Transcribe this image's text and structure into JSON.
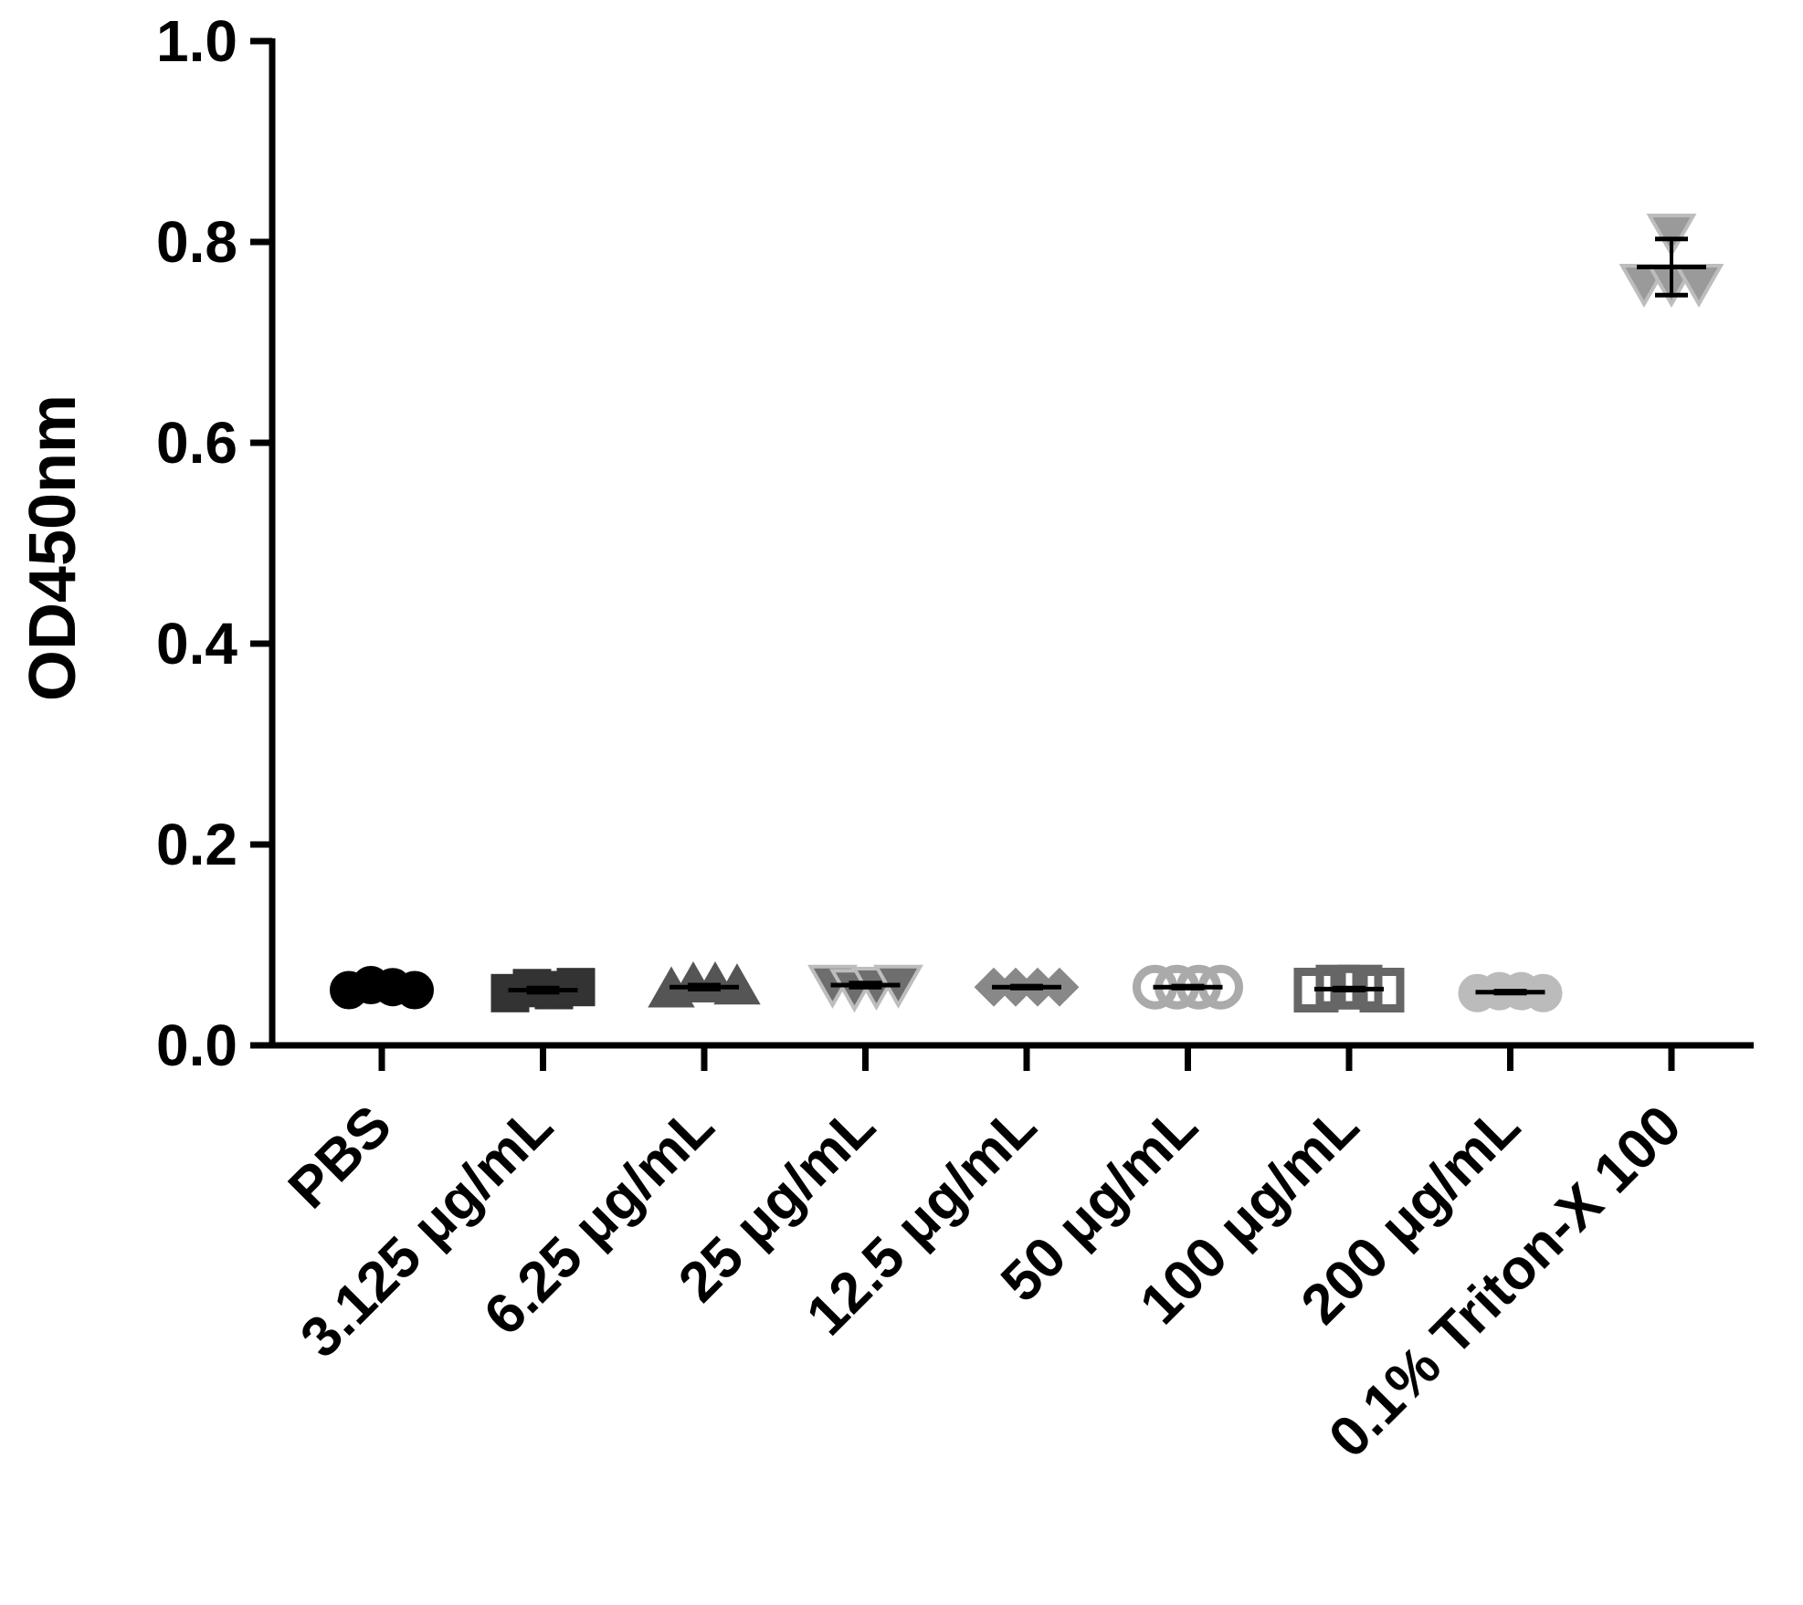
{
  "chart_data": {
    "type": "scatter",
    "title": "",
    "xlabel": "",
    "ylabel": "OD450nm",
    "ylim": [
      0,
      1.0
    ],
    "yticks": [
      0.0,
      0.2,
      0.4,
      0.6,
      0.8,
      1.0
    ],
    "ytick_labels": [
      "0.0",
      "0.2",
      "0.4",
      "0.6",
      "0.8",
      "1.0"
    ],
    "grid": false,
    "legend": "none",
    "categories": [
      "PBS",
      "3.125 μg/mL",
      "6.25 μg/mL",
      "25 μg/mL",
      "12.5 μg/mL",
      "50 μg/mL",
      "100 μg/mL",
      "200 μg/mL",
      "0.1% Triton-X 100"
    ],
    "groups": [
      {
        "marker": "circle",
        "filled": true,
        "color": "#000000",
        "values": [
          0.055,
          0.06,
          0.058,
          0.055
        ],
        "mean": 0.057,
        "sd": 0.002
      },
      {
        "marker": "square",
        "filled": true,
        "color": "#333333",
        "values": [
          0.052,
          0.057,
          0.055,
          0.058
        ],
        "mean": 0.055,
        "sd": 0.002
      },
      {
        "marker": "triangle-up",
        "filled": true,
        "color": "#555555",
        "values": [
          0.055,
          0.06,
          0.06,
          0.058
        ],
        "mean": 0.058,
        "sd": 0.002
      },
      {
        "marker": "triangle-down",
        "filled": true,
        "color": "#6e6e6e",
        "values": [
          0.062,
          0.058,
          0.06,
          0.062
        ],
        "mean": 0.06,
        "sd": 0.002
      },
      {
        "marker": "diamond",
        "filled": true,
        "color": "#888888",
        "values": [
          0.058,
          0.058,
          0.058,
          0.058
        ],
        "mean": 0.058,
        "sd": 0.001
      },
      {
        "marker": "circle",
        "filled": false,
        "color": "#aaaaaa",
        "values": [
          0.058,
          0.058,
          0.058,
          0.058
        ],
        "mean": 0.058,
        "sd": 0.001
      },
      {
        "marker": "square",
        "filled": false,
        "color": "#666666",
        "values": [
          0.055,
          0.058,
          0.058,
          0.055
        ],
        "mean": 0.056,
        "sd": 0.001
      },
      {
        "marker": "circle",
        "filled": true,
        "color": "#bbbbbb",
        "values": [
          0.052,
          0.054,
          0.054,
          0.052
        ],
        "mean": 0.053,
        "sd": 0.001
      },
      {
        "marker": "triangle-down",
        "filled": true,
        "color": "#9a9a9a",
        "values": [
          0.81,
          0.76,
          0.76,
          0.76
        ],
        "mean": 0.775,
        "sd": 0.028
      }
    ]
  }
}
